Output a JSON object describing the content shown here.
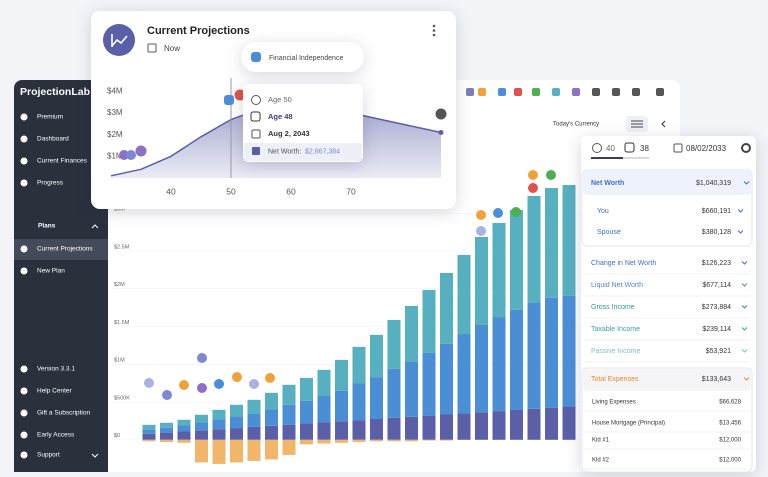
{
  "sidebar": {
    "brand": "ProjectionLab",
    "nav": [
      "Premium",
      "Dashboard",
      "Current Finances",
      "Progress"
    ],
    "plans_heading": "Plans",
    "plans": [
      "Current Projections",
      "New Plan"
    ],
    "footer": [
      "Version 3.3.1",
      "Help Center",
      "Gift a Subscription",
      "Early Access",
      "Support"
    ]
  },
  "toolbar": {
    "currency": "Today's Currency"
  },
  "main_chart": {
    "type": "bar",
    "stacked": true,
    "ylim": [
      -400,
      3400
    ],
    "yticks": [
      {
        "value": 0,
        "label": "$0"
      },
      {
        "value": 500,
        "label": "$500K"
      },
      {
        "value": 1000,
        "label": "$1M"
      },
      {
        "value": 1500,
        "label": "$1.5M"
      },
      {
        "value": 2000,
        "label": "$2M"
      },
      {
        "value": 2500,
        "label": "$2.5M"
      },
      {
        "value": 3000,
        "label": "$3M"
      }
    ],
    "grid": true,
    "series": [
      {
        "color": "#5a5fa8",
        "values": [
          80,
          95,
          110,
          125,
          140,
          155,
          170,
          185,
          200,
          215,
          230,
          245,
          260,
          275,
          290,
          305,
          320,
          335,
          350,
          365,
          380,
          395,
          410,
          425,
          440
        ]
      },
      {
        "color": "#4a8fd6",
        "values": [
          60,
          65,
          80,
          105,
          130,
          155,
          180,
          220,
          265,
          300,
          350,
          405,
          485,
          555,
          650,
          735,
          830,
          935,
          1050,
          1160,
          1245,
          1325,
          1410,
          1455,
          1465
        ]
      },
      {
        "color": "#56b0bf",
        "values": [
          58,
          65,
          75,
          101,
          127,
          153,
          179,
          217,
          263,
          305,
          346,
          408,
          485,
          559,
          647,
          732,
          834,
          939,
          1047,
          1160,
          1245,
          1322,
          1408,
          1453,
          1468
        ]
      },
      {
        "color": "#f2b66a",
        "values": [
          -20,
          -30,
          -40,
          -300,
          -320,
          -300,
          -280,
          -260,
          -200,
          -60,
          -50,
          -40,
          -30,
          -20,
          -20,
          -20,
          -10,
          -10,
          0,
          0,
          0,
          0,
          0,
          0,
          0
        ]
      }
    ]
  },
  "projection_card": {
    "title": "Current Projections",
    "subtitle": "Now",
    "marker": "Financial Independence",
    "chart": {
      "type": "area",
      "x": [
        30,
        35,
        40,
        45,
        50,
        55,
        60,
        65,
        70,
        75,
        80,
        85
      ],
      "values": [
        0.1,
        0.4,
        1.0,
        1.9,
        2.7,
        3.2,
        3.3,
        3.2,
        3.0,
        2.7,
        2.4,
        2.1
      ],
      "color": "#5a5fa8",
      "xlim": [
        29,
        85
      ],
      "xticks": [
        40,
        50,
        60,
        70
      ],
      "ylim": [
        0,
        4.2
      ],
      "yticks": [
        {
          "value": 1,
          "label": "$1M"
        },
        {
          "value": 2,
          "label": "$2M"
        },
        {
          "value": 3,
          "label": "$3M"
        },
        {
          "value": 4,
          "label": "$4M"
        }
      ]
    },
    "tooltip": {
      "ages": [
        "Age 50",
        "Age 48"
      ],
      "date": "Aug 2, 2043",
      "net_worth_label": "Net Worth:",
      "net_worth": "$2,867,384"
    }
  },
  "panel": {
    "ages": [
      "40",
      "38"
    ],
    "date": "08/02/2033",
    "net_worth": {
      "label": "Net Worth",
      "value": "$1,040,319",
      "color": "#3f6fc4",
      "children": [
        {
          "label": "You",
          "value": "$660,191"
        },
        {
          "label": "Spouse",
          "value": "$380,128"
        }
      ]
    },
    "rows": [
      {
        "label": "Change in Net Worth",
        "value": "$126,223",
        "color": "#3f6fc4"
      },
      {
        "label": "Liquid Net Worth",
        "value": "$677,114",
        "color": "#5b7fc8"
      },
      {
        "label": "Gross Income",
        "value": "$273,884",
        "color": "#2e9a8f"
      },
      {
        "label": "Taxable Income",
        "value": "$239,114",
        "color": "#3aa0a6"
      },
      {
        "label": "Passive Income",
        "value": "$53,921",
        "color": "#7cc2c6"
      }
    ],
    "expenses": {
      "label": "Total Expenses",
      "value": "$133,643",
      "color": "#e98a2e",
      "items": [
        {
          "label": "Living Expenses",
          "value": "$66,628"
        },
        {
          "label": "House Mortgage (Principal)",
          "value": "$13,456"
        },
        {
          "label": "Kid #1",
          "value": "$12,000"
        },
        {
          "label": "Kid #2",
          "value": "$12,000"
        }
      ]
    }
  }
}
